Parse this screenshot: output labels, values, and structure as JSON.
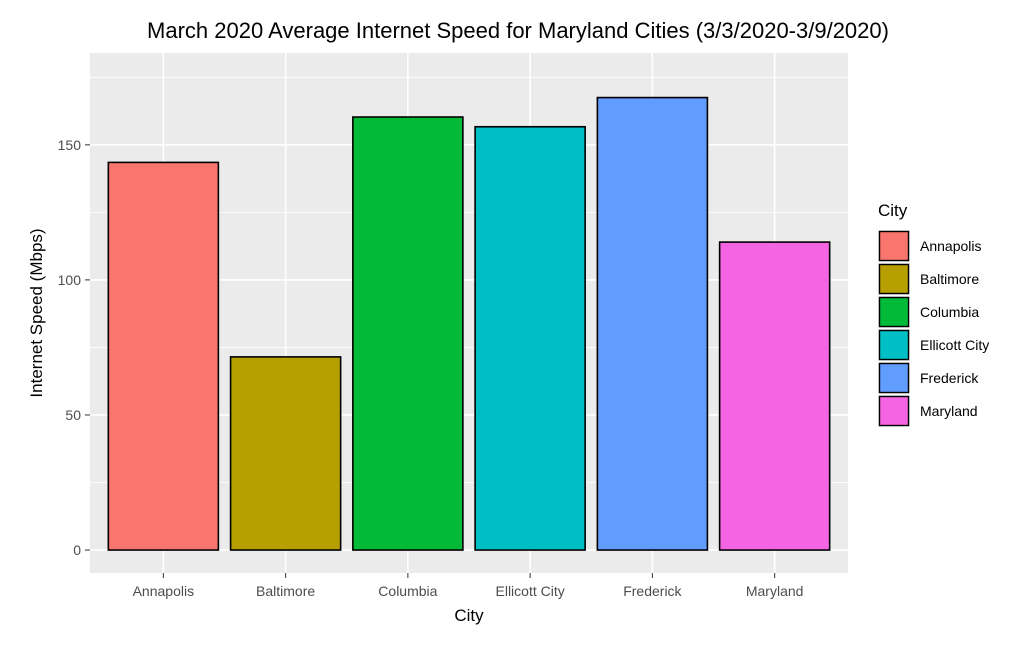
{
  "chart_data": {
    "type": "bar",
    "title": "March 2020 Average Internet Speed for Maryland Cities (3/3/2020-3/9/2020)",
    "xlabel": "City",
    "ylabel": "Internet Speed (Mbps)",
    "categories": [
      "Annapolis",
      "Baltimore",
      "Columbia",
      "Ellicott City",
      "Frederick",
      "Maryland"
    ],
    "values": [
      143.5,
      71.5,
      160.3,
      156.7,
      167.5,
      114.0
    ],
    "colors": [
      "#F8766D",
      "#B79F00",
      "#00BA38",
      "#00BFC4",
      "#619CFF",
      "#F564E3"
    ],
    "bar_outline": "#000000",
    "ylim": [
      -8.5,
      184
    ],
    "yticks": [
      0,
      50,
      100,
      150
    ],
    "grid": true,
    "panel_background": "#EBEBEB",
    "legend": {
      "title": "City",
      "position": "right",
      "entries": [
        "Annapolis",
        "Baltimore",
        "Columbia",
        "Ellicott City",
        "Frederick",
        "Maryland"
      ]
    }
  }
}
